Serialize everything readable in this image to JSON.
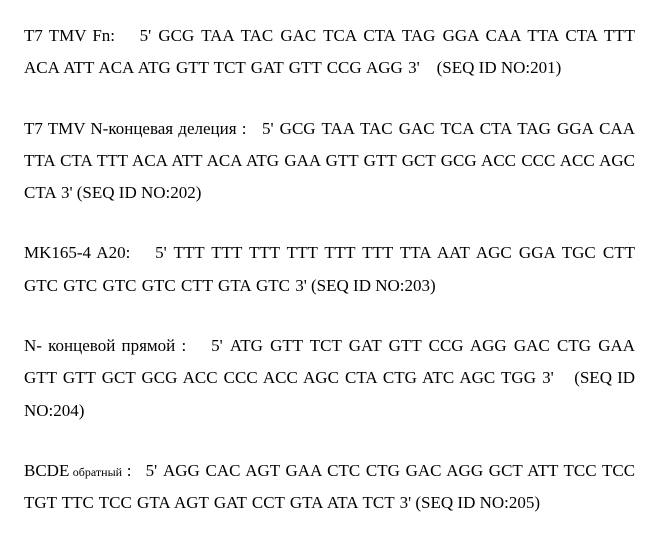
{
  "entries": [
    {
      "label": "T7 TMV Fn:",
      "sequence": "5' GCG TAA TAC GAC TCA CTA TAG GGA CAA TTA CTA TTT ACA ATT ACA ATG GTT TCT GAT GTT CCG AGG 3'",
      "seqid": "(SEQ ID NO:201)"
    },
    {
      "label": "T7 TMV N-концевая делеция :",
      "sequence": "5' GCG TAA TAC GAC TCA CTA TAG GGA CAA TTA CTA TTT ACA ATT ACA ATG GAA GTT GTT GCT GCG ACC CCC ACC AGC CTA 3'",
      "seqid": "(SEQ ID NO:202)"
    },
    {
      "label": "MK165-4 A20:",
      "sequence": "5' TTT TTT TTT TTT TTT TTT TTA AAT AGC GGA TGC CTT GTC GTC GTC GTC CTT GTA GTC 3'",
      "seqid": "(SEQ ID NO:203)"
    },
    {
      "label": "N- концевой прямой :",
      "sequence": "5' ATG GTT TCT GAT GTT CCG AGG GAC CTG GAA GTT GTT GCT GCG ACC CCC ACC AGC CTA CTG ATC AGC TGG 3'",
      "seqid": "(SEQ ID NO:204)"
    }
  ],
  "entry5": {
    "label_main": "BCDE",
    "label_sub": " обратный",
    "label_tail": " :",
    "sequence": "5' AGG CAC AGT GAA CTC CTG GAC AGG GCT ATT TCC TCC TGT TTC TCC GTA AGT GAT CCT GTA ATA TCT 3'",
    "seqid": "(SEQ ID NO:205)"
  }
}
